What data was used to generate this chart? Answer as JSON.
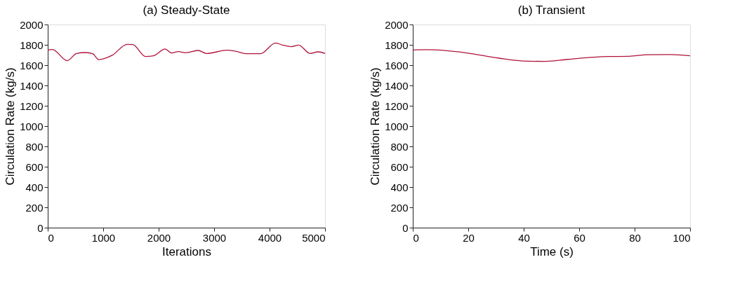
{
  "chart_data": [
    {
      "type": "line",
      "title": "(a) Steady-State",
      "xlabel": "Iterations",
      "ylabel": "Circulation Rate (kg/s)",
      "xlim": [
        0,
        5000
      ],
      "xticks": [
        0,
        1000,
        2000,
        3000,
        4000,
        5000
      ],
      "ylim": [
        0,
        2000
      ],
      "yticks": [
        0,
        200,
        400,
        600,
        800,
        1000,
        1200,
        1400,
        1600,
        1800,
        2000
      ],
      "grid": false,
      "marker": "none",
      "line_style": "solid",
      "x": [
        0,
        83,
        353,
        519,
        685,
        809,
        921,
        1162,
        1432,
        1535,
        1763,
        1909,
        2116,
        2232,
        2357,
        2490,
        2710,
        2863,
        3237,
        3402,
        3568,
        3838,
        4108,
        4232,
        4398,
        4523,
        4730,
        4876,
        5000
      ],
      "series": [
        {
          "color": "#b0123a",
          "values": [
            1747,
            1754,
            1644,
            1715,
            1724,
            1713,
            1655,
            1697,
            1805,
            1802,
            1685,
            1692,
            1759,
            1720,
            1733,
            1722,
            1745,
            1715,
            1747,
            1736,
            1713,
            1713,
            1818,
            1798,
            1782,
            1798,
            1715,
            1731,
            1715
          ]
        }
      ]
    },
    {
      "type": "line",
      "title": "(b) Transient",
      "xlabel": "Time (s)",
      "ylabel": "Circulation Rate (kg/s)",
      "xlim": [
        0,
        100
      ],
      "xticks": [
        0,
        20,
        40,
        60,
        80,
        100
      ],
      "ylim": [
        0,
        2000
      ],
      "yticks": [
        0,
        200,
        400,
        600,
        800,
        1000,
        1200,
        1400,
        1600,
        1800,
        2000
      ],
      "grid": false,
      "marker": "none",
      "line_style": "solid",
      "x": [
        0,
        4.8,
        19,
        31,
        39.7,
        48,
        56,
        70.5,
        78,
        84.6,
        93,
        100
      ],
      "series": [
        {
          "color": "#b0123a",
          "values": [
            1749,
            1752,
            1722,
            1669,
            1641,
            1637,
            1657,
            1685,
            1687,
            1703,
            1705,
            1692
          ]
        }
      ]
    }
  ]
}
